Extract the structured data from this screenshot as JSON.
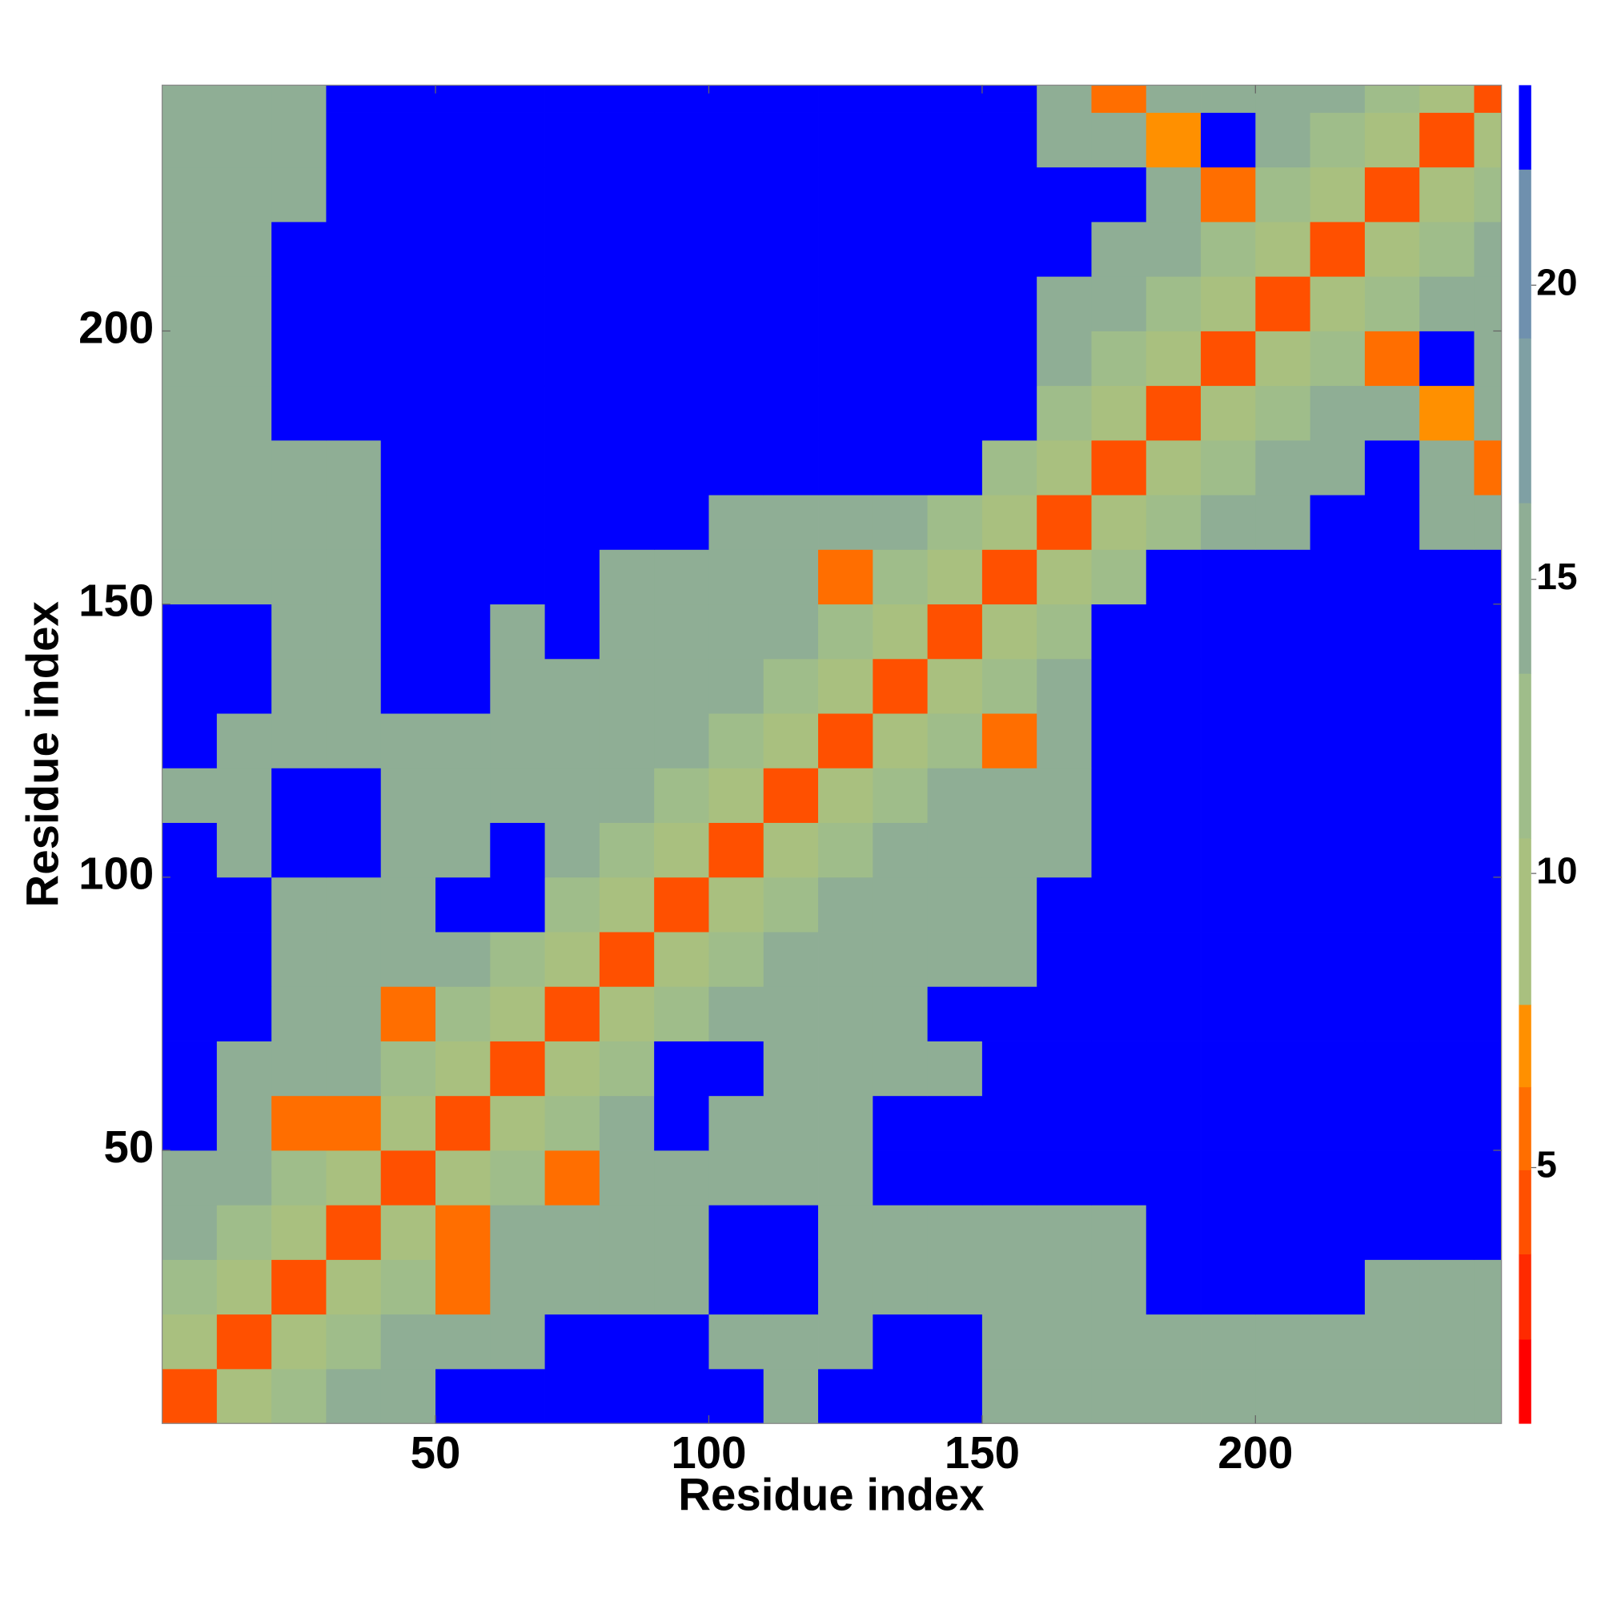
{
  "chart_data": {
    "type": "heatmap",
    "xlabel": "Residue index",
    "ylabel": "Residue index",
    "xlim": [
      0,
      245
    ],
    "ylim": [
      0,
      245
    ],
    "xticks": [
      50,
      100,
      150,
      200
    ],
    "yticks": [
      50,
      100,
      150,
      200
    ],
    "bins": [
      0,
      10,
      20,
      30,
      40,
      50,
      60,
      70,
      80,
      90,
      100,
      110,
      120,
      130,
      140,
      150,
      160,
      170,
      180,
      190,
      200,
      210,
      220,
      230,
      240,
      245
    ],
    "matrix": [
      [
        4,
        9,
        12,
        15,
        15,
        23,
        23,
        23,
        23,
        23,
        23,
        15,
        23,
        23,
        23,
        15,
        14,
        14,
        14,
        14,
        14,
        14,
        14,
        14,
        14
      ],
      [
        9,
        4,
        9,
        12,
        15,
        15,
        15,
        23,
        23,
        23,
        15,
        15,
        15,
        23,
        23,
        15,
        14,
        14,
        14,
        14,
        14,
        14,
        14,
        14,
        14
      ],
      [
        12,
        9,
        4,
        9,
        12,
        6,
        15,
        15,
        15,
        15,
        23,
        23,
        15,
        15,
        15,
        15,
        14,
        14,
        23,
        23,
        23,
        23,
        14,
        14,
        14
      ],
      [
        15,
        12,
        9,
        4,
        9,
        6,
        15,
        15,
        15,
        15,
        23,
        23,
        15,
        15,
        15,
        15,
        14,
        14,
        23,
        23,
        23,
        23,
        23,
        23,
        23
      ],
      [
        15,
        15,
        12,
        9,
        4,
        9,
        12,
        6,
        15,
        15,
        15,
        15,
        15,
        23,
        23,
        23,
        23,
        23,
        23,
        23,
        23,
        23,
        23,
        23,
        23
      ],
      [
        23,
        15,
        6,
        6,
        9,
        4,
        9,
        12,
        15,
        23,
        15,
        15,
        15,
        23,
        23,
        23,
        23,
        23,
        23,
        23,
        23,
        23,
        23,
        23,
        23
      ],
      [
        23,
        15,
        15,
        15,
        12,
        9,
        4,
        9,
        12,
        23,
        23,
        15,
        15,
        15,
        15,
        23,
        23,
        23,
        23,
        23,
        23,
        23,
        23,
        23,
        23
      ],
      [
        23,
        23,
        15,
        15,
        6,
        12,
        9,
        4,
        9,
        12,
        15,
        15,
        15,
        15,
        23,
        23,
        23,
        23,
        23,
        23,
        23,
        23,
        23,
        23,
        23
      ],
      [
        23,
        23,
        15,
        15,
        15,
        15,
        12,
        9,
        4,
        9,
        12,
        15,
        15,
        15,
        15,
        15,
        23,
        23,
        23,
        23,
        23,
        23,
        23,
        23,
        23
      ],
      [
        23,
        23,
        15,
        15,
        15,
        23,
        23,
        12,
        9,
        4,
        9,
        12,
        15,
        15,
        15,
        15,
        23,
        23,
        23,
        23,
        23,
        23,
        23,
        23,
        23
      ],
      [
        23,
        15,
        23,
        23,
        15,
        15,
        23,
        15,
        12,
        9,
        4,
        9,
        12,
        15,
        15,
        15,
        14,
        23,
        23,
        23,
        23,
        23,
        23,
        23,
        23
      ],
      [
        15,
        15,
        23,
        23,
        15,
        15,
        15,
        15,
        15,
        12,
        9,
        4,
        9,
        12,
        15,
        15,
        14,
        23,
        23,
        23,
        23,
        23,
        23,
        23,
        23
      ],
      [
        23,
        15,
        15,
        15,
        15,
        15,
        15,
        15,
        15,
        15,
        12,
        9,
        4,
        9,
        12,
        6,
        14,
        23,
        23,
        23,
        23,
        23,
        23,
        23,
        23
      ],
      [
        23,
        23,
        15,
        15,
        23,
        23,
        15,
        15,
        15,
        15,
        15,
        12,
        9,
        4,
        9,
        12,
        14,
        23,
        23,
        23,
        23,
        23,
        23,
        23,
        23
      ],
      [
        23,
        23,
        15,
        15,
        23,
        23,
        15,
        23,
        15,
        15,
        15,
        15,
        12,
        9,
        4,
        9,
        12,
        23,
        23,
        23,
        23,
        23,
        23,
        23,
        23
      ],
      [
        15,
        15,
        15,
        15,
        23,
        23,
        23,
        23,
        15,
        15,
        15,
        15,
        6,
        12,
        9,
        4,
        9,
        12,
        23,
        23,
        23,
        23,
        23,
        23,
        23
      ],
      [
        14,
        14,
        14,
        14,
        23,
        23,
        23,
        23,
        23,
        23,
        14,
        14,
        14,
        14,
        12,
        9,
        4,
        9,
        12,
        15,
        15,
        23,
        23,
        15,
        15
      ],
      [
        14,
        14,
        14,
        14,
        23,
        23,
        23,
        23,
        23,
        23,
        23,
        23,
        23,
        23,
        23,
        12,
        9,
        4,
        9,
        12,
        15,
        15,
        23,
        15,
        6
      ],
      [
        14,
        14,
        23,
        23,
        23,
        23,
        23,
        23,
        23,
        23,
        23,
        23,
        23,
        23,
        23,
        23,
        12,
        9,
        4,
        9,
        12,
        15,
        15,
        7,
        15
      ],
      [
        14,
        14,
        23,
        23,
        23,
        23,
        23,
        23,
        23,
        23,
        23,
        23,
        23,
        23,
        23,
        23,
        15,
        12,
        9,
        4,
        9,
        12,
        6,
        23,
        15
      ],
      [
        14,
        14,
        23,
        23,
        23,
        23,
        23,
        23,
        23,
        23,
        23,
        23,
        23,
        23,
        23,
        23,
        15,
        15,
        12,
        9,
        4,
        9,
        12,
        15,
        15
      ],
      [
        14,
        14,
        23,
        23,
        23,
        23,
        23,
        23,
        23,
        23,
        23,
        23,
        23,
        23,
        23,
        23,
        23,
        15,
        15,
        12,
        9,
        4,
        9,
        12,
        15
      ],
      [
        14,
        14,
        14,
        23,
        23,
        23,
        23,
        23,
        23,
        23,
        23,
        23,
        23,
        23,
        23,
        23,
        23,
        23,
        15,
        6,
        12,
        9,
        4,
        9,
        12
      ],
      [
        14,
        14,
        14,
        23,
        23,
        23,
        23,
        23,
        23,
        23,
        23,
        23,
        23,
        23,
        23,
        23,
        15,
        15,
        7,
        23,
        15,
        12,
        9,
        4,
        9
      ],
      [
        14,
        14,
        14,
        23,
        23,
        23,
        23,
        23,
        23,
        23,
        23,
        23,
        23,
        23,
        23,
        23,
        15,
        6,
        15,
        15,
        15,
        15,
        12,
        9,
        4
      ]
    ],
    "colorbar": {
      "levels": [
        0.65,
        2.08,
        3.53,
        4.96,
        6.37,
        7.77,
        10.6,
        13.4,
        16.3,
        19.1,
        21.97,
        23.4
      ],
      "colors": [
        "#ff0000",
        "#ff2a00",
        "#ff5000",
        "#ff6e00",
        "#ff9000",
        "#a9c07f",
        "#9fbd8a",
        "#8fae95",
        "#7fa0a4",
        "#6f90ae",
        "#0000ff"
      ],
      "ticks": [
        5,
        10,
        15,
        20
      ]
    }
  }
}
